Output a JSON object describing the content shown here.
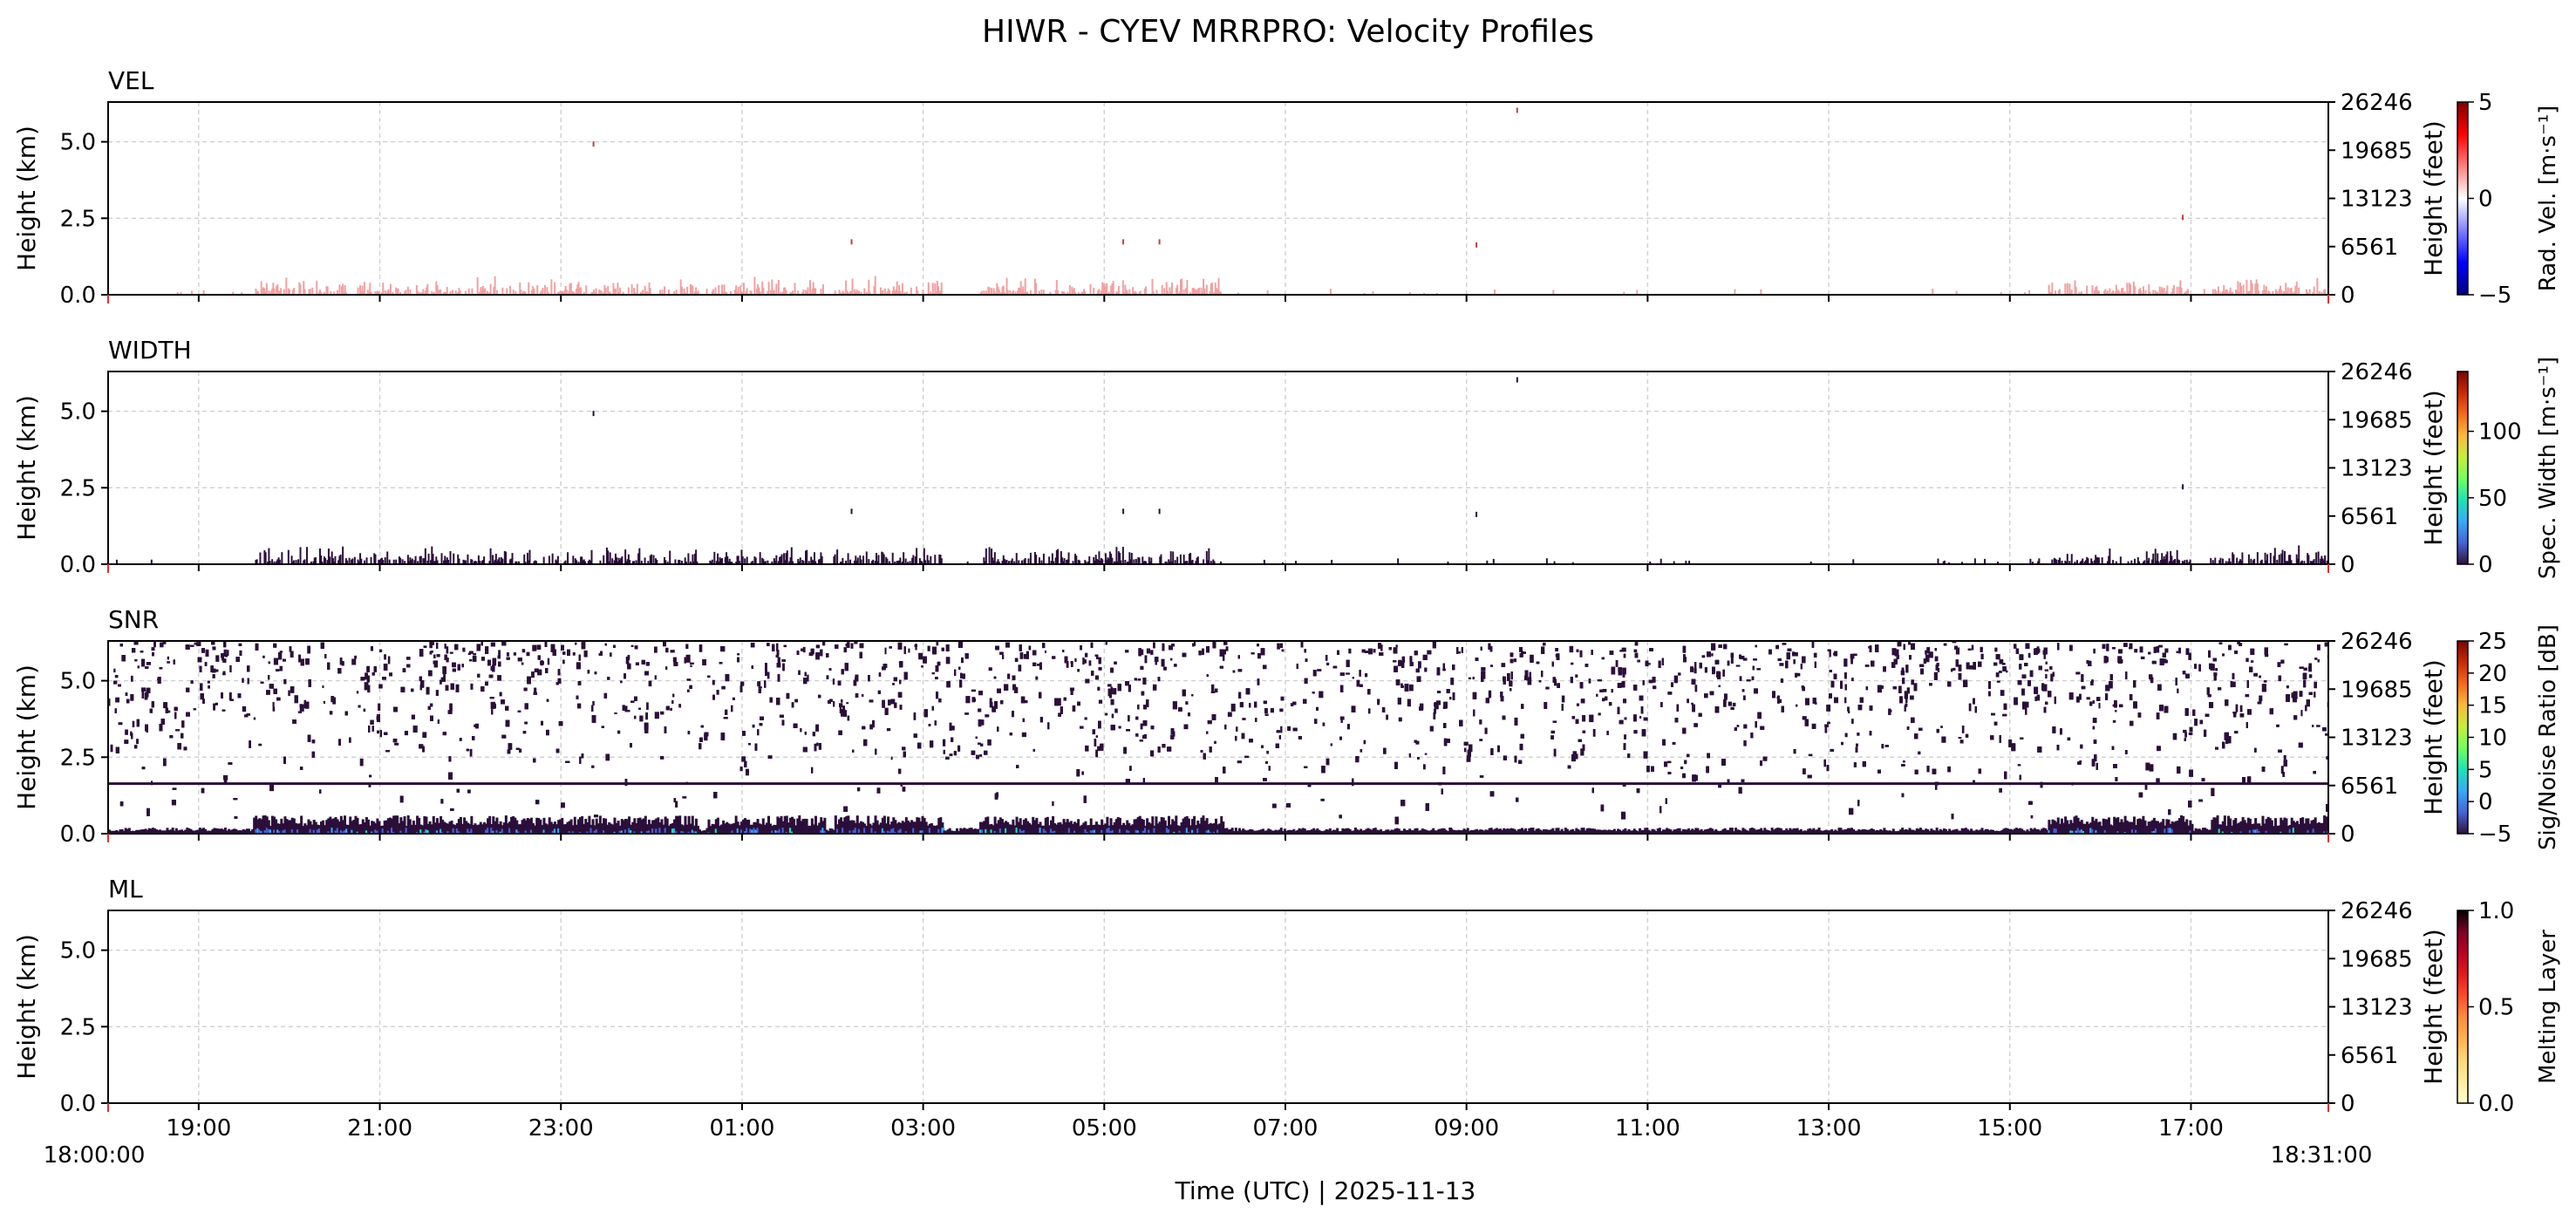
{
  "figure": {
    "title": "HIWR - CYEV MRRPRO: Velocity Profiles",
    "xlabel": "Time (UTC)  |  2025-11-13",
    "start_label": "18:00:00",
    "end_label": "18:31:00",
    "ylabel_left": "Height (km)",
    "ylabel_right": "Height (feet)"
  },
  "chart_data": {
    "type": "heatmap",
    "x_range_hours_since_start": [
      0,
      24.517
    ],
    "x_ticks": [
      "19:00",
      "21:00",
      "23:00",
      "01:00",
      "03:00",
      "05:00",
      "07:00",
      "09:00",
      "11:00",
      "13:00",
      "15:00",
      "17:00"
    ],
    "y_range_km": [
      0,
      6.3
    ],
    "y_ticks_km": [
      "0.0",
      "2.5",
      "5.0"
    ],
    "y_ticks_feet": [
      "0",
      "6561",
      "13123",
      "19685",
      "26246"
    ],
    "grid": true,
    "panels": [
      {
        "name": "VEL",
        "colorbar_label": "Rad. Vel. [m·s⁻¹]",
        "colorbar_range": [
          -5,
          5
        ],
        "colorbar_ticks": [
          "5",
          "0",
          "−5"
        ],
        "colormap": [
          "#000080",
          "#0000ff",
          "#8080ff",
          "#ffffff",
          "#ff8080",
          "#ff0000",
          "#800000"
        ],
        "data_description_counts": "sparse weak positive velocities below 0.6 km"
      },
      {
        "name": "WIDTH",
        "colorbar_label": "Spec. Width [m·s⁻¹]",
        "colorbar_range": [
          0,
          145
        ],
        "colorbar_ticks": [
          "100",
          "50",
          "0"
        ],
        "colormap": [
          "#30123b",
          "#4662d7",
          "#36aaf9",
          "#1ae4b6",
          "#72fe5e",
          "#c7ef34",
          "#faba39",
          "#f66b19",
          "#ca2a04",
          "#7a0403"
        ]
      },
      {
        "name": "SNR",
        "colorbar_label": "Sig/Noise Ratio [dB]",
        "colorbar_range": [
          -5,
          25
        ],
        "colorbar_ticks": [
          "25",
          "20",
          "15",
          "10",
          "5",
          "0",
          "−5"
        ],
        "colormap": [
          "#30123b",
          "#4662d7",
          "#36aaf9",
          "#1ae4b6",
          "#72fe5e",
          "#c7ef34",
          "#faba39",
          "#f66b19",
          "#ca2a04",
          "#7a0403"
        ]
      },
      {
        "name": "ML",
        "colorbar_label": "Melting Layer",
        "colorbar_range": [
          0,
          1
        ],
        "colorbar_ticks": [
          "1.0",
          "0.5",
          "0.0"
        ],
        "colormap": [
          "#ffffcc",
          "#ffeda0",
          "#fed976",
          "#feb24c",
          "#fd8d3c",
          "#fc4e2a",
          "#e31a1c",
          "#bd0026",
          "#800026",
          "#000000"
        ]
      }
    ],
    "echo_segments_hours": [
      [
        1.6,
        6.5
      ],
      [
        6.6,
        7.9
      ],
      [
        8.0,
        9.2
      ],
      [
        9.6,
        12.3
      ],
      [
        21.4,
        23.0
      ],
      [
        23.2,
        24.5
      ]
    ]
  },
  "colors": {
    "axis": "#000000",
    "grid": "#d0d0d0",
    "echo_dark": "#2b0f3a",
    "vel_echo": "#f2a0a0",
    "tick_red": "#e03030"
  }
}
